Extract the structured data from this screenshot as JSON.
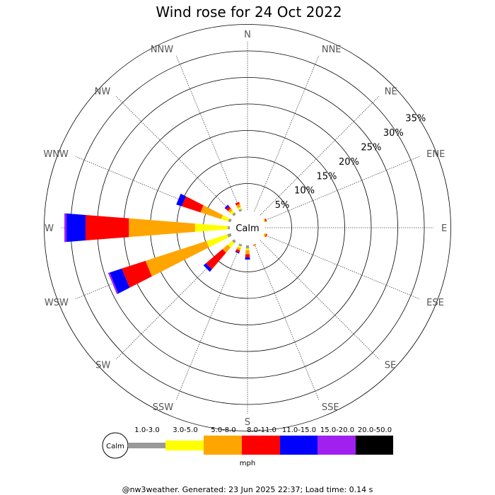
{
  "chart_data": {
    "type": "wind-rose",
    "title": "Wind rose for 24 Oct 2022",
    "calm_label": "Calm",
    "directions": [
      "N",
      "NNE",
      "NE",
      "ENE",
      "E",
      "ESE",
      "SE",
      "SSE",
      "S",
      "SSW",
      "SW",
      "WSW",
      "W",
      "WNW",
      "NW",
      "NNW"
    ],
    "radial_ticks": [
      "5%",
      "10%",
      "15%",
      "20%",
      "25%",
      "30%",
      "35%"
    ],
    "radial_tick_values": [
      5,
      10,
      15,
      20,
      25,
      30,
      35
    ],
    "unit": "mph",
    "speed_bins": [
      {
        "label": "1.0-3.0",
        "color": "#999999"
      },
      {
        "label": "3.0-5.0",
        "color": "#ffff00"
      },
      {
        "label": "5.0-8.0",
        "color": "#ffa500"
      },
      {
        "label": "8.0-11.0",
        "color": "#ff0000"
      },
      {
        "label": "11.0-15.0",
        "color": "#0000ff"
      },
      {
        "label": "15.0-20.0",
        "color": "#a020f0"
      },
      {
        "label": "20.0-50.0",
        "color": "#000000"
      }
    ],
    "data_percent": {
      "N": [
        0,
        0,
        0,
        0,
        0,
        0,
        0
      ],
      "NNE": [
        0,
        0,
        0,
        0,
        0,
        0,
        0
      ],
      "NE": [
        0,
        0,
        0,
        0,
        0,
        0,
        0
      ],
      "ENE": [
        0,
        0.1,
        0.2,
        0.2,
        0,
        0,
        0
      ],
      "E": [
        0,
        0,
        0,
        0,
        0,
        0,
        0
      ],
      "ESE": [
        0,
        0.1,
        0.3,
        0.2,
        0,
        0,
        0
      ],
      "SE": [
        0,
        0,
        0,
        0,
        0,
        0,
        0
      ],
      "SSE": [
        0,
        0.1,
        0.1,
        0.1,
        0,
        0,
        0
      ],
      "S": [
        0.6,
        0.3,
        0.8,
        0.6,
        0.4,
        0,
        0
      ],
      "SSW": [
        0.4,
        0.4,
        0.4,
        0.4,
        0.2,
        0,
        0
      ],
      "SW": [
        0.5,
        1.1,
        1.3,
        4.1,
        0.6,
        0,
        0
      ],
      "WSW": [
        0.7,
        4.1,
        12.1,
        4.7,
        2.4,
        0.3,
        0
      ],
      "W": [
        0.4,
        6.2,
        12.5,
        8.2,
        3.6,
        0.4,
        0
      ],
      "WNW": [
        0.5,
        1.4,
        4.1,
        3.7,
        1.1,
        0,
        0
      ],
      "NW": [
        0.5,
        0.5,
        0.5,
        0.5,
        0.3,
        0.1,
        0
      ],
      "NNW": [
        0.4,
        0.4,
        0.6,
        0.4,
        0,
        0,
        0
      ]
    }
  },
  "footer": "@nw3weather. Generated: 23 Jun 2025 22:37; Load time: 0.14 s"
}
